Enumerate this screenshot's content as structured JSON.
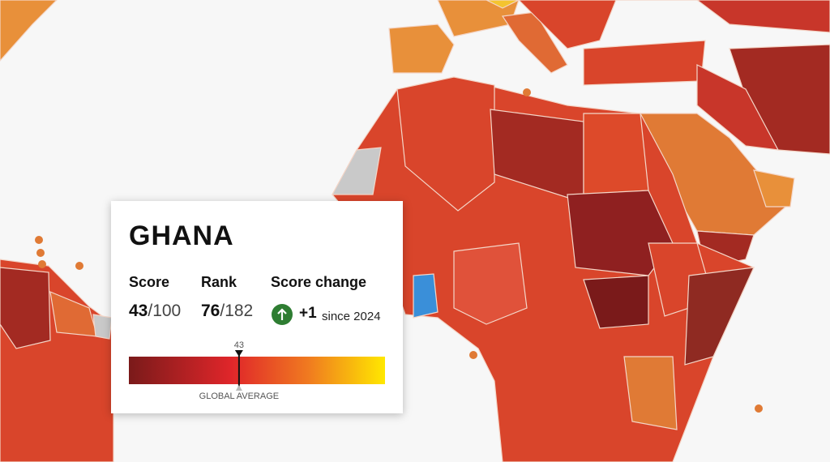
{
  "country": "GHANA",
  "score": {
    "label": "Score",
    "value": "43",
    "of": "/100"
  },
  "rank": {
    "label": "Rank",
    "value": "76",
    "of": "/182"
  },
  "score_change": {
    "label": "Score change",
    "value": "+1",
    "since": "since 2024"
  },
  "gauge": {
    "value": 43,
    "range": [
      0,
      100
    ],
    "label": "GLOBAL AVERAGE"
  }
}
